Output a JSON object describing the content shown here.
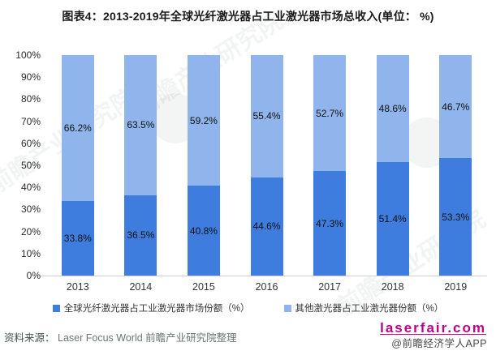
{
  "title": "图表4：2013-2019年全球光纤激光器占工业激光器市场总收入(单位： %)",
  "chart_data": {
    "type": "bar",
    "stacked": true,
    "title": "图表4：2013-2019年全球光纤激光器占工业激光器市场总收入(单位： %)",
    "categories": [
      "2013",
      "2014",
      "2015",
      "2016",
      "2017",
      "2018",
      "2019"
    ],
    "series": [
      {
        "name": "全球光纤激光器占工业激光器市场份额（%）",
        "color": "#3E7DDE",
        "values": [
          33.8,
          36.5,
          40.8,
          44.6,
          47.3,
          51.4,
          53.3
        ]
      },
      {
        "name": "其他激光器占工业激光器份额（%）",
        "color": "#8FB5EC",
        "values": [
          66.2,
          63.5,
          59.2,
          55.4,
          52.7,
          48.6,
          46.7
        ]
      }
    ],
    "xlabel": "",
    "ylabel": "",
    "ylim": [
      0,
      100
    ],
    "yticks": [
      "0%",
      "10%",
      "20%",
      "30%",
      "40%",
      "50%",
      "60%",
      "70%",
      "80%",
      "90%",
      "100%"
    ],
    "grid": false,
    "legend_position": "bottom",
    "value_suffix": "%"
  },
  "footer": {
    "source_label": "资料来源：",
    "source_text": "Laser Focus World 前瞻产业研究院整理"
  },
  "watermarks": {
    "site": "laserfair.com",
    "credit": "@前瞻经济学人APP",
    "diagonal": "前瞻产业研究院"
  }
}
